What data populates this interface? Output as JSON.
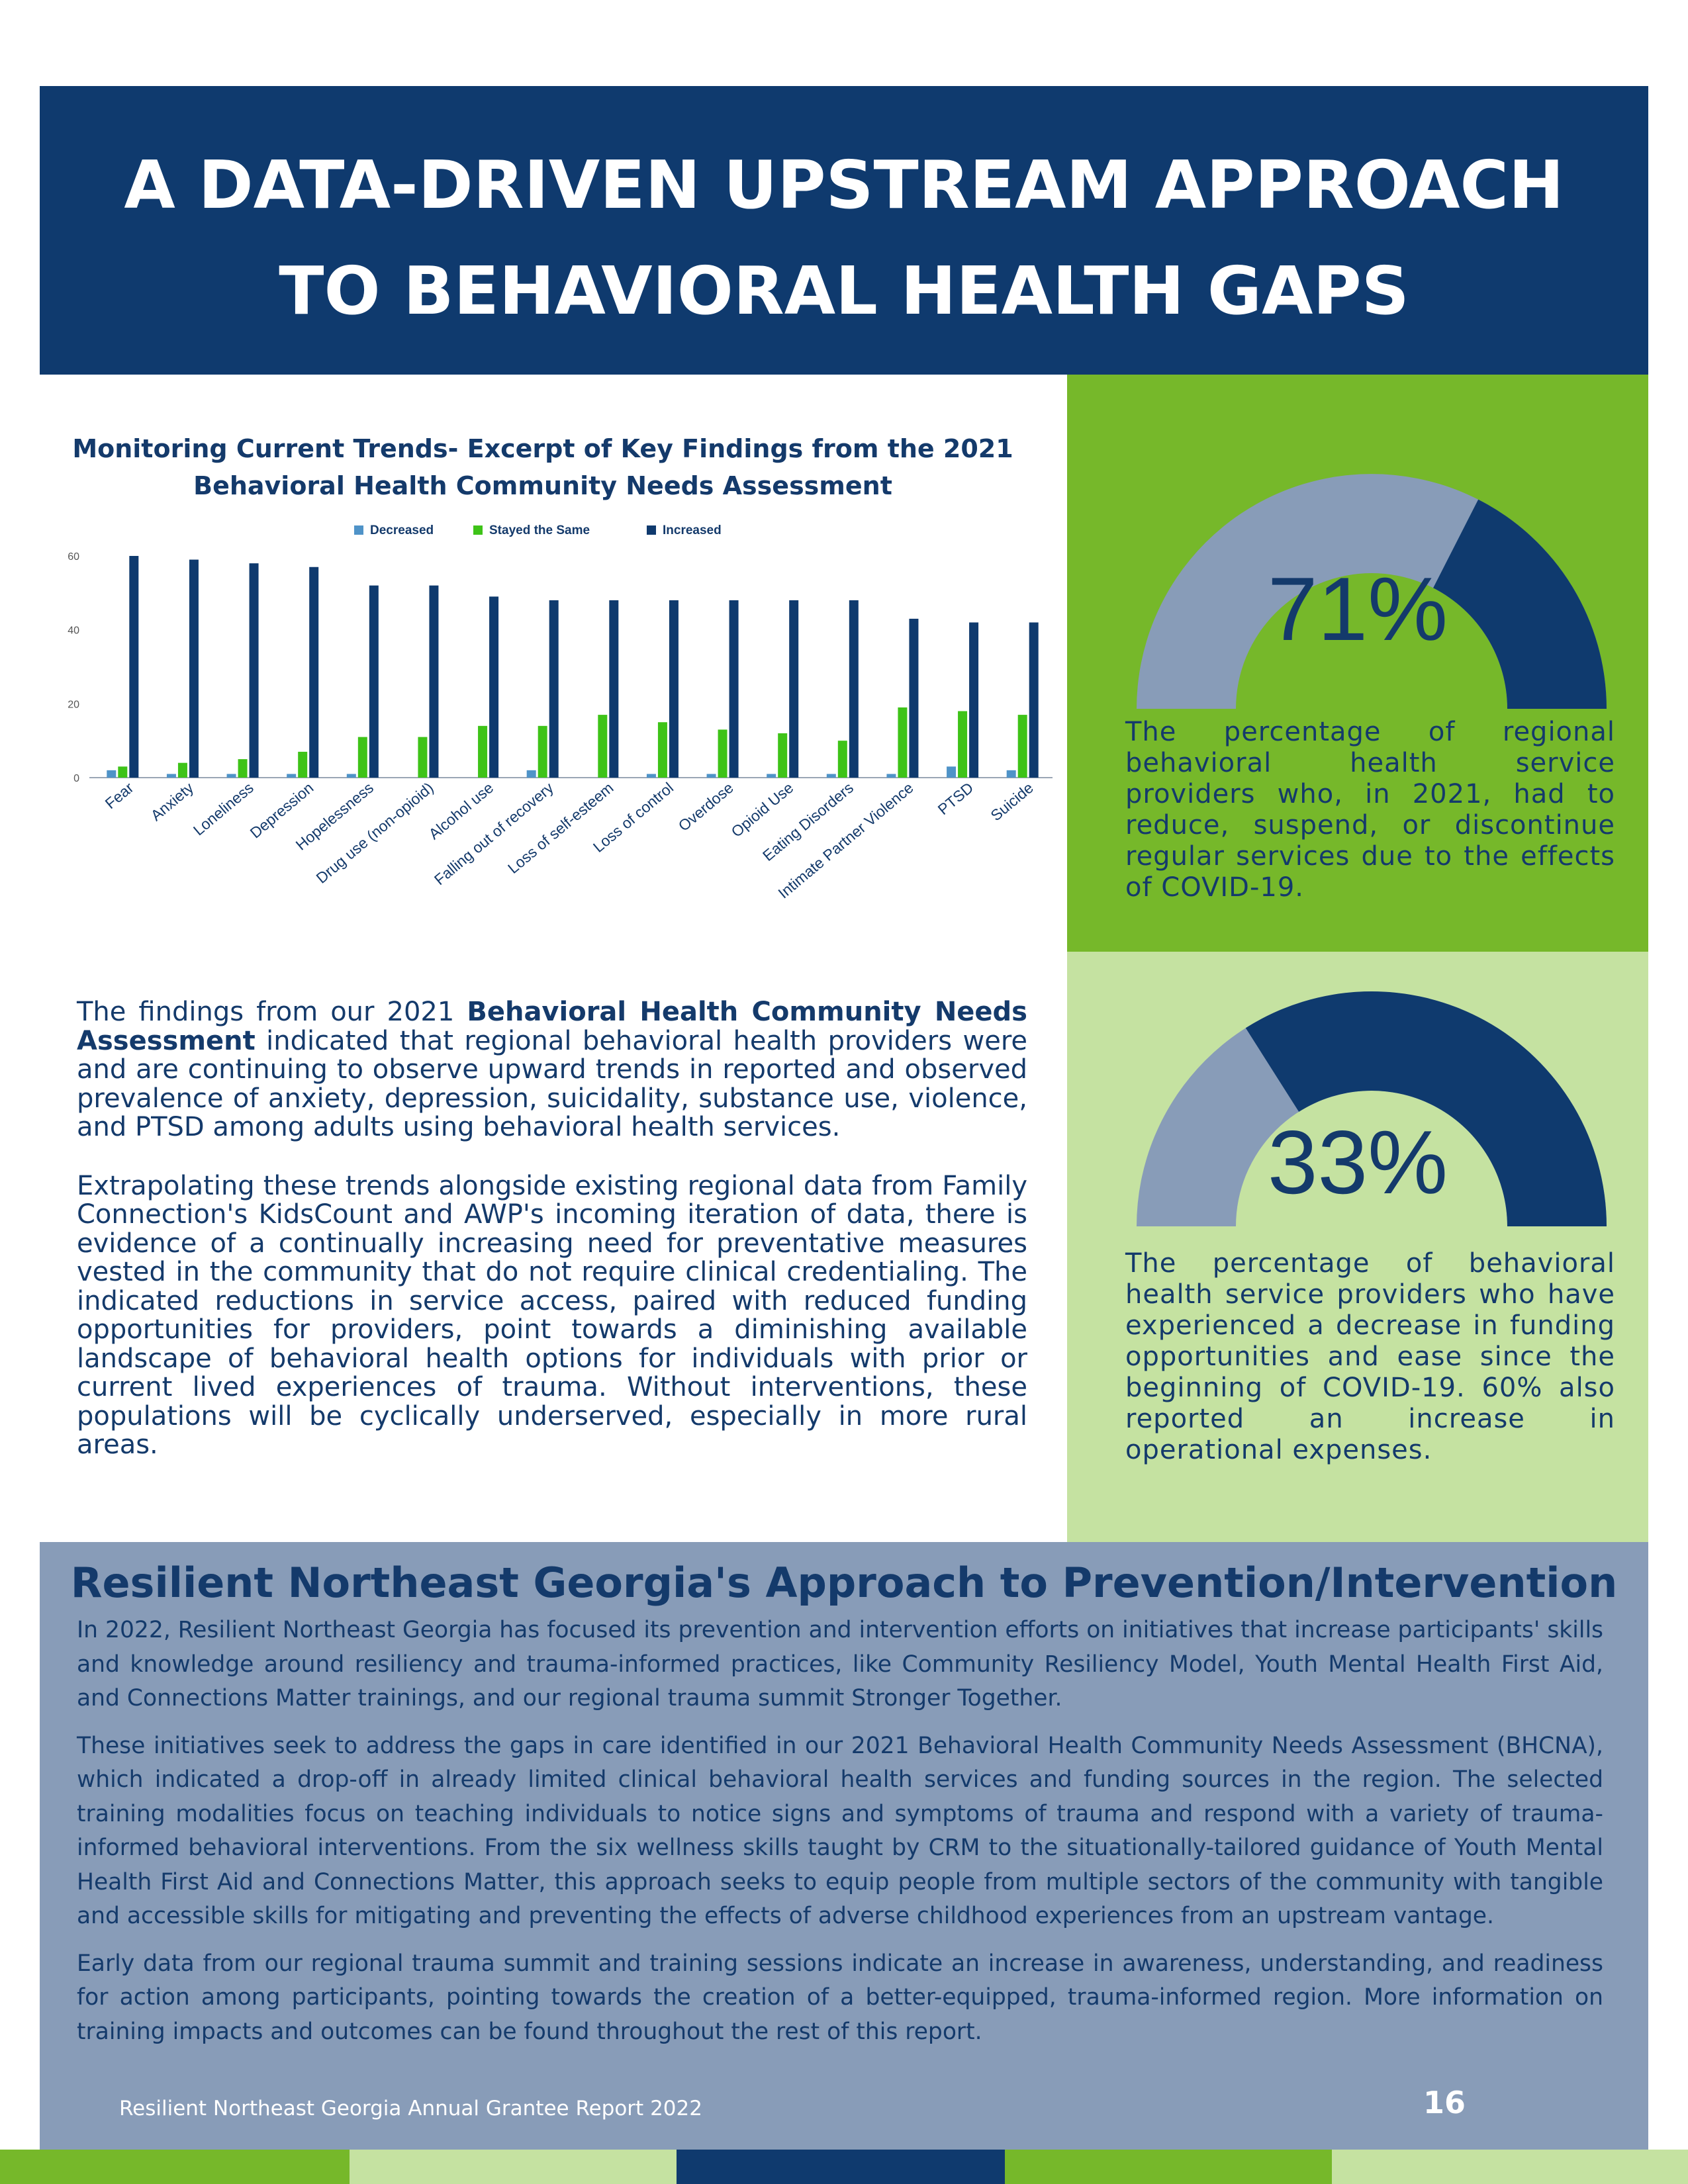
{
  "header": {
    "title_line1": "A DATA-DRIVEN UPSTREAM APPROACH",
    "title_line2": "TO BEHAVIORAL HEALTH GAPS"
  },
  "chart_title_line1": "Monitoring Current Trends- Excerpt of Key Findings from the 2021",
  "chart_title_line2": "Behavioral Health Community Needs Assessment",
  "chart_data": {
    "type": "bar",
    "categories": [
      "Fear",
      "Anxiety",
      "Loneliness",
      "Depression",
      "Hopelessness",
      "Drug use (non-opioid)",
      "Alcohol use",
      "Falling out of recovery",
      "Loss of self-esteem",
      "Loss of control",
      "Overdose",
      "Opioid Use",
      "Eating Disorders",
      "Intimate Partner Violence",
      "PTSD",
      "Suicide"
    ],
    "series": [
      {
        "name": "Decreased",
        "color": "#4f93c8",
        "values": [
          2,
          1,
          1,
          1,
          1,
          0,
          0,
          2,
          0,
          1,
          1,
          1,
          1,
          1,
          3,
          2
        ]
      },
      {
        "name": "Stayed the Same",
        "color": "#3ec318",
        "values": [
          3,
          4,
          5,
          7,
          11,
          11,
          14,
          14,
          17,
          15,
          13,
          12,
          10,
          19,
          18,
          17
        ]
      },
      {
        "name": "Increased",
        "color": "#0f3a6e",
        "values": [
          60,
          59,
          58,
          57,
          52,
          52,
          49,
          48,
          48,
          48,
          48,
          48,
          48,
          43,
          42,
          42
        ]
      }
    ],
    "ylim": [
      0,
      60
    ],
    "yticks": [
      0,
      20,
      40,
      60
    ],
    "legend": "top",
    "grid": false
  },
  "stat1": {
    "percent_label": "71%",
    "percent": 71,
    "text": "The percentage of regional behavioral health service providers who, in 2021, had to reduce, suspend, or discontinue regular services due to the effects of COVID-19.",
    "bg": "#76b82a"
  },
  "stat2": {
    "percent_label": "33%",
    "percent": 33,
    "text": "The percentage of behavioral health service providers who have experienced a decrease in funding opportunities and ease since the beginning of COVID-19. 60% also reported an increase in operational expenses.",
    "bg": "#c5e2a1"
  },
  "findings": {
    "p1_a": "The findings from our 2021 ",
    "p1_bold": "Behavioral Health Community Needs Assessment",
    "p1_b": " indicated that regional behavioral health providers were and are continuing to observe upward trends in reported and observed prevalence of anxiety, depression, suicidality, substance use, violence, and PTSD among adults using behavioral health services.",
    "p2": "Extrapolating these trends alongside existing regional data from Family Connection's KidsCount and AWP's incoming iteration of data, there is evidence of a continually increasing need for preventative measures vested in the community that do not require clinical credentialing. The indicated reductions in service access, paired with reduced funding opportunities for providers, point towards a diminishing available landscape of behavioral health options for individuals with prior or current lived experiences of trauma. Without interventions, these populations will be cyclically underserved, especially in more rural areas."
  },
  "approach": {
    "title": "Resilient Northeast Georgia's Approach to Prevention/Intervention",
    "p1": "In 2022, Resilient Northeast Georgia has focused its prevention and intervention efforts on initiatives that increase participants' skills and knowledge around resiliency and trauma-informed practices, like Community Resiliency Model, Youth Mental Health First Aid, and Connections Matter trainings, and our regional trauma summit Stronger Together.",
    "p2": "These initiatives seek to address the gaps in care identified in our 2021 Behavioral Health Community Needs Assessment (BHCNA), which indicated a drop-off in already limited clinical behavioral health services and funding sources in the region. The selected training modalities focus on teaching individuals to notice signs and symptoms of trauma and respond with a variety of trauma-informed behavioral interventions. From the six wellness skills taught by CRM to the situationally-tailored guidance of Youth Mental Health First Aid and Connections Matter, this approach seeks to equip people from multiple sectors of the community with tangible and accessible skills for mitigating and preventing the effects of adverse childhood experiences from an upstream vantage.",
    "p3": "Early data from our regional trauma summit and training sessions indicate an increase in awareness, understanding, and readiness for action among participants, pointing towards the creation of a better-equipped, trauma-informed region. More information on training impacts and outcomes can be found throughout the rest of this report."
  },
  "footer": {
    "report_name": "Resilient Northeast Georgia Annual Grantee Report 2022",
    "page_number": "16"
  },
  "colors": {
    "navy": "#0f3a6e",
    "green": "#76b82a",
    "light_green": "#c5e2a1",
    "slate": "#889cb8",
    "gauge_light": "#889cb8"
  }
}
